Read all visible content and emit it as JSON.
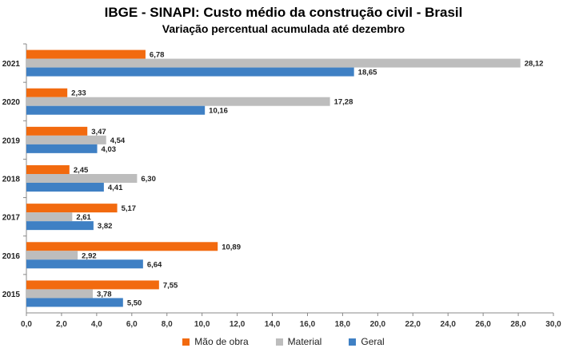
{
  "chart_data": {
    "type": "bar",
    "orientation": "horizontal",
    "title": "IBGE - SINAPI: Custo médio da construção civil - Brasil",
    "subtitle": "Variação percentual acumulada até dezembro",
    "categories": [
      "2021",
      "2020",
      "2019",
      "2018",
      "2017",
      "2016",
      "2015"
    ],
    "series": [
      {
        "name": "Mão de obra",
        "color": "#F26A0F",
        "values": [
          6.78,
          2.33,
          3.47,
          2.45,
          5.17,
          10.89,
          7.55
        ],
        "labels": [
          "6,78",
          "2,33",
          "3,47",
          "2,45",
          "5,17",
          "10,89",
          "7,55"
        ]
      },
      {
        "name": "Material",
        "color": "#BDBDBD",
        "values": [
          28.12,
          17.28,
          4.54,
          6.3,
          2.61,
          2.92,
          3.78
        ],
        "labels": [
          "28,12",
          "17,28",
          "4,54",
          "6,30",
          "2,61",
          "2,92",
          "3,78"
        ]
      },
      {
        "name": "Geral",
        "color": "#3F80C4",
        "values": [
          18.65,
          10.16,
          4.03,
          4.41,
          3.82,
          6.64,
          5.5
        ],
        "labels": [
          "18,65",
          "10,16",
          "4,03",
          "4,41",
          "3,82",
          "6,64",
          "5,50"
        ]
      }
    ],
    "xlim": [
      0,
      30
    ],
    "xticks": [
      "0,0",
      "2,0",
      "4,0",
      "6,0",
      "8,0",
      "10,0",
      "12,0",
      "14,0",
      "16,0",
      "18,0",
      "20,0",
      "22,0",
      "24,0",
      "26,0",
      "28,0",
      "30,0"
    ],
    "grid": false,
    "legend_position": "bottom"
  }
}
